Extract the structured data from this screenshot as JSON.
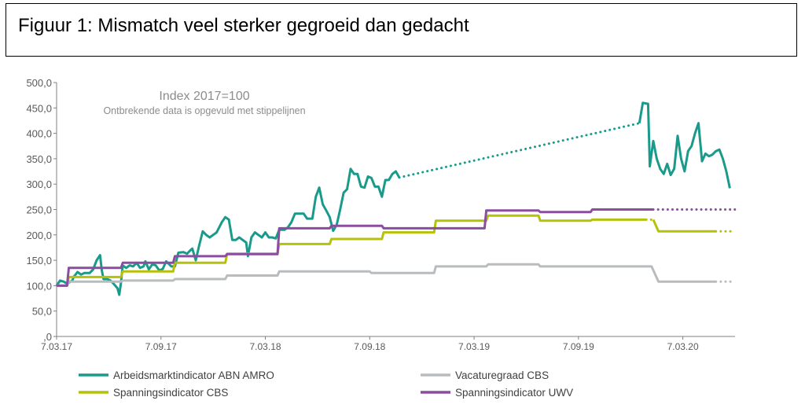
{
  "figure_title": "Figuur 1: Mismatch veel sterker gegroeid dan gedacht",
  "chart_data": {
    "type": "line",
    "subtitle": "Index 2017=100",
    "note": "Ontbrekende data is opgevuld met stippelijnen",
    "y_ticks": [
      "500,0",
      "450,0",
      "400,0",
      "350,0",
      "300,0",
      "250,0",
      "200,0",
      "150,0",
      "100,0",
      "50,0",
      ",0"
    ],
    "ylim": [
      0,
      500
    ],
    "x_ticks": [
      {
        "label": "7.03.17",
        "t": 0
      },
      {
        "label": "7.09.17",
        "t": 6
      },
      {
        "label": "7.03.18",
        "t": 12
      },
      {
        "label": "7.09.18",
        "t": 18
      },
      {
        "label": "7.03.19",
        "t": 24
      },
      {
        "label": "7.09.19",
        "t": 30
      },
      {
        "label": "7.03.20",
        "t": 36
      }
    ],
    "xlim": [
      0,
      39
    ],
    "legend": [
      {
        "key": "abn",
        "label": "Arbeidsmarktindicator ABN AMRO"
      },
      {
        "key": "vac",
        "label": "Vacaturegraad CBS"
      },
      {
        "key": "spc",
        "label": "Spanningsindicator CBS"
      },
      {
        "key": "uwv",
        "label": "Spanningsindicator UWV"
      }
    ],
    "series": [
      {
        "key": "abn",
        "name": "Arbeidsmarktindicator ABN AMRO",
        "color": "#1a9a8a",
        "segments": [
          {
            "style": "solid",
            "points": [
              [
                0,
                100
              ],
              [
                0.2,
                110
              ],
              [
                0.4,
                108
              ],
              [
                0.6,
                104
              ],
              [
                0.9,
                110
              ],
              [
                1.0,
                118
              ],
              [
                1.2,
                127
              ],
              [
                1.4,
                122
              ],
              [
                1.6,
                125
              ],
              [
                1.9,
                125
              ],
              [
                2.1,
                132
              ],
              [
                2.3,
                150
              ],
              [
                2.5,
                160
              ],
              [
                2.6,
                130
              ],
              [
                2.7,
                113
              ],
              [
                2.9,
                113
              ],
              [
                3.1,
                110
              ],
              [
                3.3,
                103
              ],
              [
                3.5,
                95
              ],
              [
                3.6,
                82
              ],
              [
                3.7,
                106
              ],
              [
                3.8,
                140
              ],
              [
                4.0,
                135
              ],
              [
                4.2,
                140
              ],
              [
                4.4,
                138
              ],
              [
                4.6,
                145
              ],
              [
                4.8,
                135
              ],
              [
                5.0,
                138
              ],
              [
                5.1,
                148
              ],
              [
                5.3,
                132
              ],
              [
                5.5,
                142
              ],
              [
                5.7,
                140
              ],
              [
                5.9,
                130
              ],
              [
                6.1,
                133
              ],
              [
                6.3,
                148
              ],
              [
                6.6,
                138
              ],
              [
                6.8,
                138
              ],
              [
                7.0,
                165
              ],
              [
                7.3,
                166
              ],
              [
                7.5,
                163
              ],
              [
                7.7,
                170
              ],
              [
                7.8,
                173
              ],
              [
                8.0,
                150
              ],
              [
                8.2,
                180
              ],
              [
                8.4,
                207
              ],
              [
                8.6,
                200
              ],
              [
                8.8,
                195
              ],
              [
                9.0,
                200
              ],
              [
                9.2,
                205
              ],
              [
                9.5,
                225
              ],
              [
                9.7,
                235
              ],
              [
                9.9,
                230
              ],
              [
                10.1,
                190
              ],
              [
                10.3,
                190
              ],
              [
                10.5,
                195
              ],
              [
                10.7,
                190
              ],
              [
                10.9,
                185
              ],
              [
                11.0,
                158
              ],
              [
                11.2,
                195
              ],
              [
                11.4,
                205
              ],
              [
                11.6,
                200
              ],
              [
                11.8,
                195
              ],
              [
                12.0,
                205
              ],
              [
                12.2,
                195
              ],
              [
                12.4,
                195
              ],
              [
                12.6,
                193
              ],
              [
                12.8,
                210
              ],
              [
                13.1,
                210
              ],
              [
                13.3,
                215
              ],
              [
                13.5,
                225
              ],
              [
                13.7,
                242
              ],
              [
                13.9,
                242
              ],
              [
                14.2,
                242
              ],
              [
                14.4,
                232
              ],
              [
                14.7,
                232
              ],
              [
                14.9,
                275
              ],
              [
                15.1,
                293
              ],
              [
                15.3,
                260
              ],
              [
                15.5,
                248
              ],
              [
                15.7,
                235
              ],
              [
                15.9,
                208
              ],
              [
                16.1,
                220
              ],
              [
                16.3,
                250
              ],
              [
                16.5,
                283
              ],
              [
                16.7,
                290
              ],
              [
                16.9,
                330
              ],
              [
                17.1,
                320
              ],
              [
                17.3,
                320
              ],
              [
                17.5,
                295
              ],
              [
                17.7,
                293
              ],
              [
                17.9,
                315
              ],
              [
                18.1,
                312
              ],
              [
                18.3,
                295
              ],
              [
                18.5,
                295
              ],
              [
                18.7,
                275
              ],
              [
                18.9,
                308
              ],
              [
                19.1,
                308
              ],
              [
                19.3,
                320
              ],
              [
                19.5,
                325
              ],
              [
                19.7,
                313
              ]
            ]
          },
          {
            "style": "dotted",
            "points": [
              [
                19.7,
                313
              ],
              [
                33.5,
                420
              ]
            ]
          },
          {
            "style": "solid",
            "points": [
              [
                33.5,
                420
              ],
              [
                33.7,
                460
              ],
              [
                34.0,
                458
              ],
              [
                34.1,
                335
              ],
              [
                34.3,
                385
              ],
              [
                34.5,
                350
              ],
              [
                34.7,
                330
              ],
              [
                34.9,
                320
              ],
              [
                35.1,
                340
              ],
              [
                35.3,
                318
              ],
              [
                35.5,
                330
              ],
              [
                35.7,
                395
              ],
              [
                35.9,
                350
              ],
              [
                36.1,
                325
              ],
              [
                36.3,
                365
              ],
              [
                36.5,
                375
              ],
              [
                36.7,
                400
              ],
              [
                36.9,
                420
              ],
              [
                37.1,
                345
              ],
              [
                37.3,
                360
              ],
              [
                37.5,
                355
              ],
              [
                37.7,
                358
              ],
              [
                37.9,
                365
              ],
              [
                38.1,
                368
              ],
              [
                38.3,
                350
              ],
              [
                38.5,
                325
              ],
              [
                38.7,
                292
              ]
            ]
          }
        ]
      },
      {
        "key": "vac",
        "name": "Vacaturegraad CBS",
        "color": "#b9bcbe",
        "segments": [
          {
            "style": "solid",
            "points": [
              [
                0,
                100
              ],
              [
                0.6,
                100
              ],
              [
                0.7,
                108
              ],
              [
                3.7,
                108
              ],
              [
                3.8,
                110
              ],
              [
                6.7,
                110
              ],
              [
                6.8,
                113
              ],
              [
                9.7,
                113
              ],
              [
                9.8,
                120
              ],
              [
                12.7,
                120
              ],
              [
                12.8,
                128
              ],
              [
                18.0,
                128
              ],
              [
                18.1,
                125
              ],
              [
                21.7,
                125
              ],
              [
                21.8,
                138
              ],
              [
                24.7,
                138
              ],
              [
                24.8,
                142
              ],
              [
                27.7,
                142
              ],
              [
                27.8,
                138
              ],
              [
                34.2,
                138
              ],
              [
                34.6,
                108
              ],
              [
                37.9,
                108
              ]
            ]
          },
          {
            "style": "dotted",
            "points": [
              [
                37.9,
                108
              ],
              [
                39.0,
                108
              ]
            ]
          }
        ]
      },
      {
        "key": "spc",
        "name": "Spanningsindicator CBS",
        "color": "#b5c10a",
        "segments": [
          {
            "style": "solid",
            "points": [
              [
                0,
                100
              ],
              [
                0.6,
                100
              ],
              [
                0.7,
                117
              ],
              [
                3.7,
                117
              ],
              [
                3.8,
                128
              ],
              [
                6.7,
                128
              ],
              [
                6.8,
                145
              ],
              [
                9.7,
                145
              ],
              [
                9.8,
                163
              ],
              [
                12.7,
                163
              ],
              [
                12.8,
                182
              ],
              [
                15.7,
                182
              ],
              [
                15.8,
                192
              ],
              [
                18.7,
                192
              ],
              [
                18.8,
                205
              ],
              [
                21.7,
                205
              ],
              [
                21.8,
                228
              ],
              [
                24.7,
                228
              ],
              [
                24.8,
                238
              ],
              [
                27.7,
                238
              ],
              [
                27.8,
                228
              ],
              [
                30.7,
                228
              ],
              [
                30.8,
                230
              ],
              [
                33.9,
                230
              ]
            ]
          },
          {
            "style": "dotted",
            "points": [
              [
                33.9,
                230
              ],
              [
                34.3,
                230
              ]
            ]
          },
          {
            "style": "solid",
            "points": [
              [
                34.3,
                230
              ],
              [
                34.6,
                207
              ],
              [
                37.9,
                207
              ]
            ]
          },
          {
            "style": "dotted",
            "points": [
              [
                37.9,
                207
              ],
              [
                39.0,
                207
              ]
            ]
          }
        ]
      },
      {
        "key": "uwv",
        "name": "Spanningsindicator UWV",
        "color": "#8a4d9f",
        "segments": [
          {
            "style": "solid",
            "points": [
              [
                0,
                100
              ],
              [
                0.6,
                100
              ],
              [
                0.7,
                135
              ],
              [
                3.7,
                135
              ],
              [
                3.8,
                145
              ],
              [
                6.7,
                145
              ],
              [
                6.8,
                158
              ],
              [
                9.7,
                158
              ],
              [
                9.8,
                162
              ],
              [
                12.7,
                162
              ],
              [
                12.8,
                213
              ],
              [
                15.7,
                213
              ],
              [
                15.8,
                218
              ],
              [
                18.7,
                218
              ],
              [
                18.8,
                213
              ],
              [
                24.6,
                213
              ],
              [
                24.7,
                248
              ],
              [
                27.7,
                248
              ],
              [
                27.8,
                245
              ],
              [
                30.7,
                245
              ],
              [
                30.8,
                250
              ],
              [
                34.3,
                250
              ]
            ]
          },
          {
            "style": "dotted",
            "points": [
              [
                34.3,
                250
              ],
              [
                39.0,
                250
              ]
            ]
          }
        ]
      }
    ]
  }
}
